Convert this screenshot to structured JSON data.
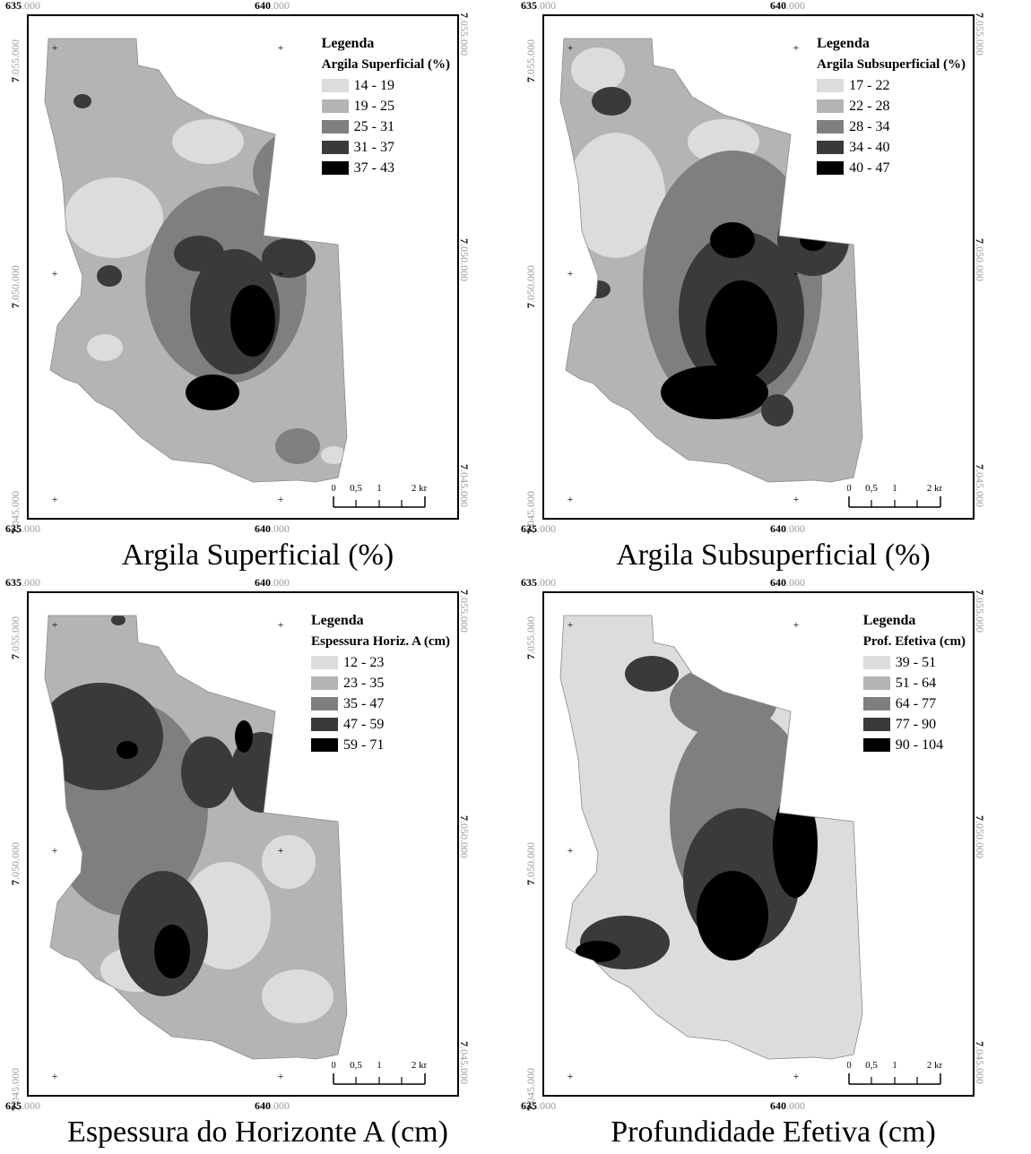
{
  "colors": {
    "class1": "#dcdcdc",
    "class2": "#b4b4b4",
    "class3": "#7f7f7f",
    "class4": "#3a3a3a",
    "class5": "#000000"
  },
  "axes": {
    "x_left": {
      "main": "635",
      "decimals": ".000"
    },
    "x_right": {
      "main": "640",
      "decimals": ".000"
    },
    "y_top": {
      "main": "7",
      "decimals": ".055.000"
    },
    "y_mid": {
      "main": "7",
      "decimals": ".050.000"
    },
    "y_bottom": {
      "main": "7",
      "decimals": ".045.000"
    }
  },
  "scale": {
    "l0": "0",
    "l1": "0,5",
    "l2": "1",
    "l3": "2 km"
  },
  "panels": [
    {
      "caption": "Argila Superficial (%)",
      "legend_title": "Legenda",
      "variable": "Argila Superficial (%)",
      "classes": [
        "14 - 19",
        "19 - 25",
        "25 - 31",
        "31 - 37",
        "37 - 43"
      ]
    },
    {
      "caption": "Argila Subsuperficial (%)",
      "legend_title": "Legenda",
      "variable": "Argila Subsuperficial (%)",
      "classes": [
        "17 - 22",
        "22 - 28",
        "28 - 34",
        "34 - 40",
        "40 - 47"
      ]
    },
    {
      "caption": "Espessura do Horizonte A (cm)",
      "legend_title": "Legenda",
      "variable": "Espessura Horiz. A (cm)",
      "classes": [
        "12 - 23",
        "23 - 35",
        "35 - 47",
        "47 - 59",
        "59 - 71"
      ]
    },
    {
      "caption": "Profundidade Efetiva (cm)",
      "legend_title": "Legenda",
      "variable": "Prof. Efetiva (cm)",
      "classes": [
        "39 - 51",
        "51 - 64",
        "64 - 77",
        "77 - 90",
        "90 - 104"
      ]
    }
  ]
}
